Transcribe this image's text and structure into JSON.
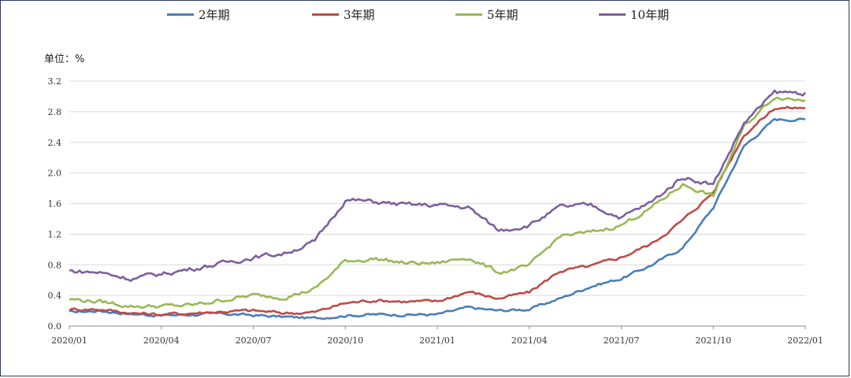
{
  "chart_data": {
    "type": "line",
    "title": "",
    "xlabel": "",
    "ylabel": "单位：%",
    "ylim": [
      0.0,
      3.2
    ],
    "yticks": [
      "0.0",
      "0.4",
      "0.8",
      "1.2",
      "1.6",
      "2.0",
      "2.4",
      "2.8",
      "3.2"
    ],
    "xticks": [
      "2020/01",
      "2020/04",
      "2020/07",
      "2020/10",
      "2021/01",
      "2021/04",
      "2021/07",
      "2021/10",
      "2022/01"
    ],
    "grid": "horizontal",
    "legend": "top",
    "x": [
      "2020/01",
      "2020/02",
      "2020/03",
      "2020/04",
      "2020/05",
      "2020/06",
      "2020/07",
      "2020/08",
      "2020/09",
      "2020/10",
      "2020/11",
      "2020/12",
      "2021/01",
      "2021/02",
      "2021/03",
      "2021/04",
      "2021/05",
      "2021/06",
      "2021/07",
      "2021/08",
      "2021/09",
      "2021/10",
      "2021/11",
      "2021/12",
      "2022/01"
    ],
    "series": [
      {
        "name": "2年期",
        "color": "#4a7ebb",
        "values": [
          0.18,
          0.2,
          0.16,
          0.14,
          0.15,
          0.16,
          0.14,
          0.12,
          0.1,
          0.14,
          0.15,
          0.15,
          0.15,
          0.24,
          0.2,
          0.22,
          0.36,
          0.52,
          0.62,
          0.8,
          1.02,
          1.55,
          2.35,
          2.7,
          2.7
        ]
      },
      {
        "name": "3年期",
        "color": "#be4b48",
        "values": [
          0.22,
          0.22,
          0.17,
          0.15,
          0.17,
          0.19,
          0.2,
          0.17,
          0.18,
          0.3,
          0.34,
          0.32,
          0.32,
          0.45,
          0.36,
          0.44,
          0.72,
          0.78,
          0.9,
          1.08,
          1.38,
          1.75,
          2.5,
          2.85,
          2.85
        ]
      },
      {
        "name": "5年期",
        "color": "#98b954",
        "values": [
          0.35,
          0.32,
          0.26,
          0.26,
          0.27,
          0.34,
          0.4,
          0.38,
          0.48,
          0.85,
          0.88,
          0.82,
          0.82,
          0.9,
          0.7,
          0.78,
          1.18,
          1.22,
          1.32,
          1.55,
          1.85,
          1.7,
          2.6,
          3.0,
          2.95
        ]
      },
      {
        "name": "10年期",
        "color": "#7d5fa0",
        "values": [
          0.72,
          0.7,
          0.62,
          0.68,
          0.75,
          0.82,
          0.9,
          0.95,
          1.1,
          1.65,
          1.62,
          1.58,
          1.58,
          1.55,
          1.25,
          1.32,
          1.55,
          1.58,
          1.42,
          1.62,
          1.95,
          1.85,
          2.65,
          3.05,
          3.05
        ]
      }
    ]
  }
}
